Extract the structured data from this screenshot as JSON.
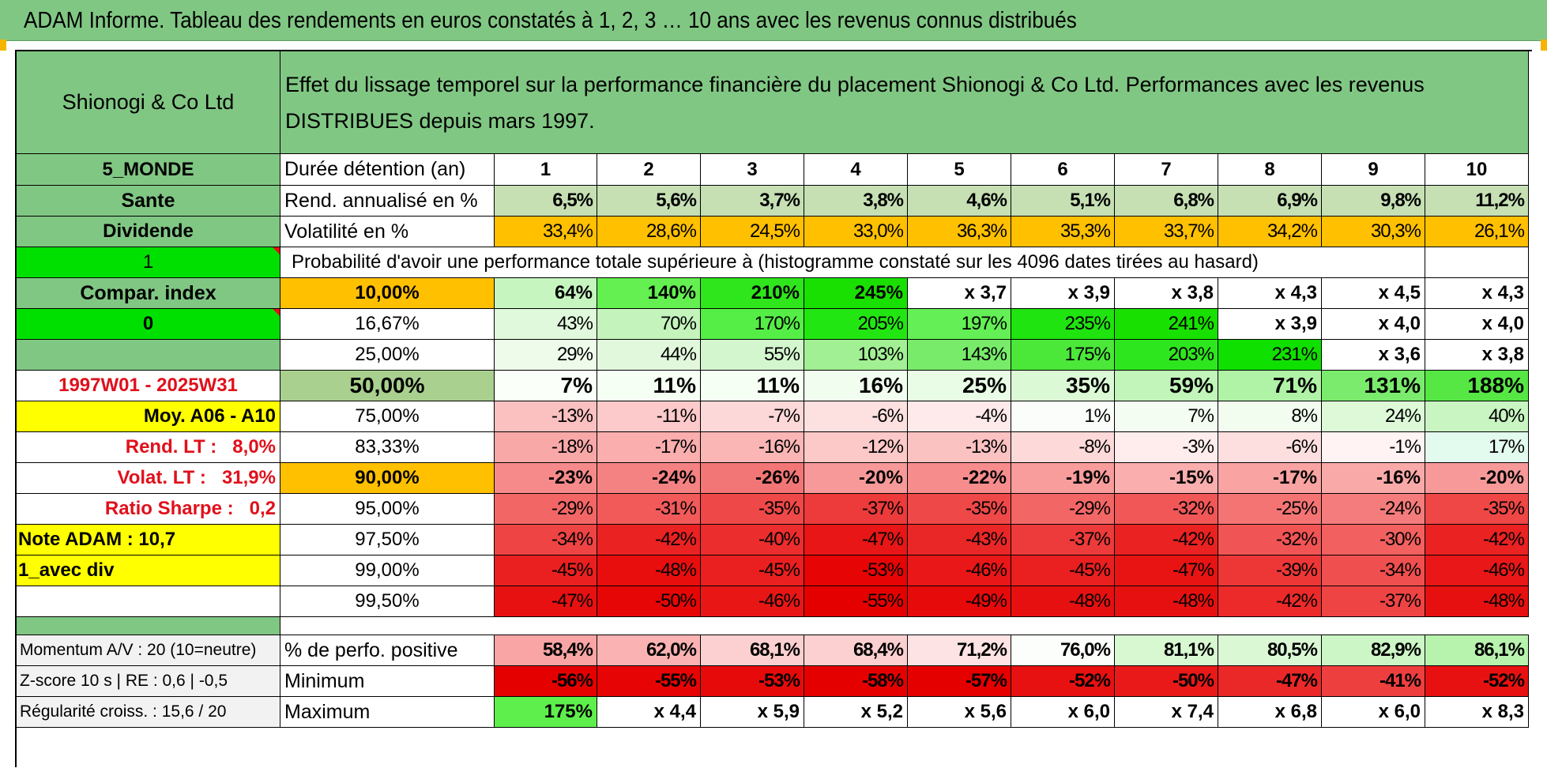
{
  "title": "ADAM Informe. Tableau des rendements en euros constatés à 1, 2, 3 … 10 ans avec les revenus connus distribués",
  "colors": {
    "header_green": "#81c784",
    "light_green": "#c6e0b4",
    "orange": "#ffc000",
    "yellow": "#ffff00",
    "bright_green": "#00e000",
    "red_text": "#e0101b"
  },
  "header": {
    "company": "Shionogi & Co Ltd",
    "description": "Effet du lissage temporel sur la performance financière du placement Shionogi & Co Ltd. Performances avec les revenus DISTRIBUES depuis mars 1997."
  },
  "left": {
    "zone": "5_MONDE",
    "sector": "Sante",
    "type": "Dividende",
    "flag1": "1",
    "compar": "Compar. index",
    "flag0": "0",
    "period": "1997W01 - 2025W31",
    "moy": "Moy. A06 - A10",
    "rend_lt_label": "Rend. LT :",
    "rend_lt_value": "8,0%",
    "volat_lt_label": "Volat. LT :",
    "volat_lt_value": "31,9%",
    "sharpe_label": "Ratio Sharpe :",
    "sharpe_value": "0,2",
    "note": "Note ADAM : 10,7",
    "avec_div": "1_avec div"
  },
  "rows": {
    "duree_label": "Durée détention (an)",
    "years": [
      "1",
      "2",
      "3",
      "4",
      "5",
      "6",
      "7",
      "8",
      "9",
      "10"
    ],
    "rend_label": "Rend. annualisé en %",
    "rend": [
      "6,5%",
      "5,6%",
      "3,7%",
      "3,8%",
      "4,6%",
      "5,1%",
      "6,8%",
      "6,9%",
      "9,8%",
      "11,2%"
    ],
    "vol_label": "Volatilité en %",
    "vol": [
      "33,4%",
      "28,6%",
      "24,5%",
      "33,0%",
      "36,3%",
      "35,3%",
      "33,7%",
      "34,2%",
      "30,3%",
      "26,1%"
    ],
    "prob_label": "Probabilité d'avoir une performance totale supérieure à (histogramme constaté sur les 4096 dates tirées au hasard)"
  },
  "quantiles": [
    {
      "label": "10,00%",
      "values": [
        "64%",
        "140%",
        "210%",
        "245%",
        "x 3,7",
        "x 3,9",
        "x 3,8",
        "x 4,3",
        "x 4,5",
        "x 4,3"
      ]
    },
    {
      "label": "16,67%",
      "values": [
        "43%",
        "70%",
        "170%",
        "205%",
        "197%",
        "235%",
        "241%",
        "x 3,9",
        "x 4,0",
        "x 4,0"
      ]
    },
    {
      "label": "25,00%",
      "values": [
        "29%",
        "44%",
        "55%",
        "103%",
        "143%",
        "175%",
        "203%",
        "231%",
        "x 3,6",
        "x 3,8"
      ]
    },
    {
      "label": "50,00%",
      "values": [
        "7%",
        "11%",
        "11%",
        "16%",
        "25%",
        "35%",
        "59%",
        "71%",
        "131%",
        "188%"
      ]
    },
    {
      "label": "75,00%",
      "values": [
        "-13%",
        "-11%",
        "-7%",
        "-6%",
        "-4%",
        "1%",
        "7%",
        "8%",
        "24%",
        "40%"
      ]
    },
    {
      "label": "83,33%",
      "values": [
        "-18%",
        "-17%",
        "-16%",
        "-12%",
        "-13%",
        "-8%",
        "-3%",
        "-6%",
        "-1%",
        "17%"
      ]
    },
    {
      "label": "90,00%",
      "values": [
        "-23%",
        "-24%",
        "-26%",
        "-20%",
        "-22%",
        "-19%",
        "-15%",
        "-17%",
        "-16%",
        "-20%"
      ]
    },
    {
      "label": "95,00%",
      "values": [
        "-29%",
        "-31%",
        "-35%",
        "-37%",
        "-35%",
        "-29%",
        "-32%",
        "-25%",
        "-24%",
        "-35%"
      ]
    },
    {
      "label": "97,50%",
      "values": [
        "-34%",
        "-42%",
        "-40%",
        "-47%",
        "-43%",
        "-37%",
        "-42%",
        "-32%",
        "-30%",
        "-42%"
      ]
    },
    {
      "label": "99,00%",
      "values": [
        "-45%",
        "-48%",
        "-45%",
        "-53%",
        "-46%",
        "-45%",
        "-47%",
        "-39%",
        "-34%",
        "-46%"
      ]
    },
    {
      "label": "99,50%",
      "values": [
        "-47%",
        "-50%",
        "-46%",
        "-55%",
        "-49%",
        "-48%",
        "-48%",
        "-42%",
        "-37%",
        "-48%"
      ]
    }
  ],
  "bottom": {
    "momentum": "Momentum A/V : 20 (10=neutre)",
    "zscore": "Z-score 10 s | RE : 0,6 | -0,5",
    "regularite": "Régularité croiss. : 15,6 / 20",
    "positive_label": "% de perfo. positive",
    "positive": [
      "58,4%",
      "62,0%",
      "68,1%",
      "68,4%",
      "71,2%",
      "76,0%",
      "81,1%",
      "80,5%",
      "82,9%",
      "86,1%"
    ],
    "minimum_label": "Minimum",
    "minimum": [
      "-56%",
      "-55%",
      "-53%",
      "-58%",
      "-57%",
      "-52%",
      "-50%",
      "-47%",
      "-41%",
      "-52%"
    ],
    "maximum_label": "Maximum",
    "maximum": [
      "175%",
      "x 4,4",
      "x 5,9",
      "x 5,2",
      "x 5,6",
      "x 6,0",
      "x 7,4",
      "x 6,8",
      "x 6,0",
      "x 8,3"
    ]
  }
}
